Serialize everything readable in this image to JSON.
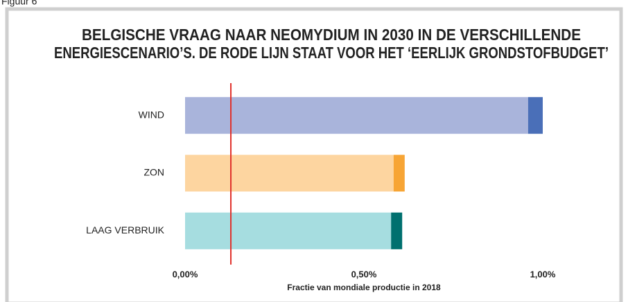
{
  "figure_label": "Figuur 6",
  "chart_data": {
    "type": "stacked-barh",
    "title": [
      "BELGISCHE VRAAG NAAR NEOMYDIUM IN 2030 IN DE VERSCHILLENDE",
      "ENERGIESCENARIO’S. DE RODE LIJN STAAT VOOR HET ‘EERLIJK GRONDSTOFBUDGET’"
    ],
    "categories": [
      "WIND",
      "ZON",
      "LAAG VERBRUIK"
    ],
    "series": [
      {
        "colors": [
          "#a9b4db",
          "#fdd5a0",
          "#a6dde0"
        ],
        "values": [
          0.959,
          0.583,
          0.576
        ]
      },
      {
        "colors": [
          "#4a6fb8",
          "#f7a535",
          "#00706f"
        ],
        "values": [
          0.041,
          0.031,
          0.031
        ]
      }
    ],
    "xlim": [
      0,
      1.1
    ],
    "xticks": [
      {
        "value": 0,
        "label": "0,00%"
      },
      {
        "value": 0.5,
        "label": "0,50%"
      },
      {
        "value": 1,
        "label": "1,00%"
      }
    ],
    "xlabel": "Fractie van mondiale productie in 2018",
    "reference_line": {
      "value": 0.128,
      "color": "#e0312b"
    }
  }
}
